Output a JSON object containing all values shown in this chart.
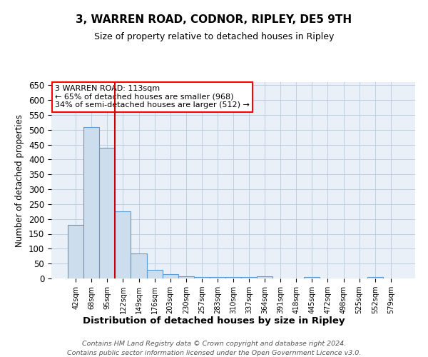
{
  "title": "3, WARREN ROAD, CODNOR, RIPLEY, DE5 9TH",
  "subtitle": "Size of property relative to detached houses in Ripley",
  "xlabel": "Distribution of detached houses by size in Ripley",
  "ylabel": "Number of detached properties",
  "categories": [
    "42sqm",
    "68sqm",
    "95sqm",
    "122sqm",
    "149sqm",
    "176sqm",
    "203sqm",
    "230sqm",
    "257sqm",
    "283sqm",
    "310sqm",
    "337sqm",
    "364sqm",
    "391sqm",
    "418sqm",
    "445sqm",
    "472sqm",
    "498sqm",
    "525sqm",
    "552sqm",
    "579sqm"
  ],
  "values": [
    180,
    510,
    440,
    225,
    85,
    28,
    15,
    8,
    5,
    4,
    4,
    4,
    8,
    0,
    0,
    5,
    0,
    0,
    0,
    5,
    0
  ],
  "bar_color": "#ccdded",
  "bar_edge_color": "#5b9bd5",
  "grid_color": "#c0d0e0",
  "background_color": "#eaf0f8",
  "property_label": "3 WARREN ROAD: 113sqm",
  "annotation_line1": "← 65% of detached houses are smaller (968)",
  "annotation_line2": "34% of semi-detached houses are larger (512) →",
  "red_line_x": 2.5,
  "vline_color": "#cc0000",
  "footer_line1": "Contains HM Land Registry data © Crown copyright and database right 2024.",
  "footer_line2": "Contains public sector information licensed under the Open Government Licence v3.0.",
  "ylim": [
    0,
    660
  ],
  "yticks": [
    0,
    50,
    100,
    150,
    200,
    250,
    300,
    350,
    400,
    450,
    500,
    550,
    600,
    650
  ]
}
